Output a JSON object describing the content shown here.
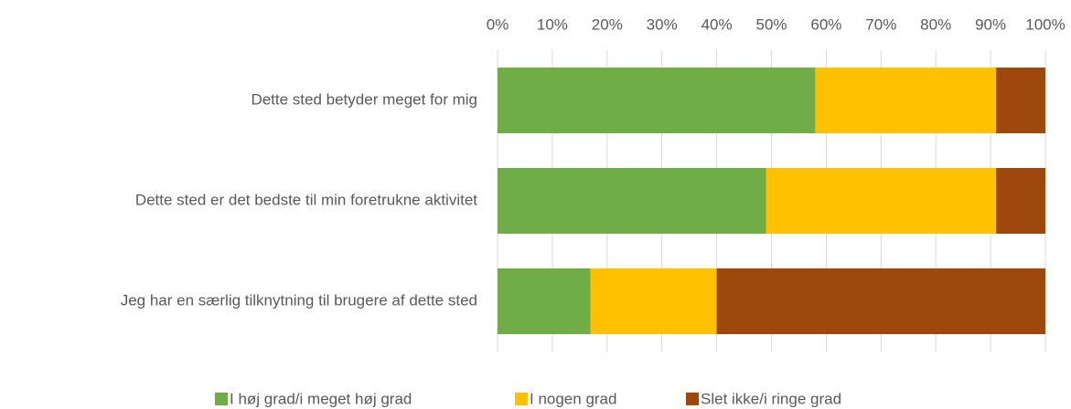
{
  "chart_data": {
    "type": "stacked_bar_horizontal",
    "categories": [
      "Dette sted betyder meget for mig",
      "Dette sted er det bedste til min foretrukne aktivitet",
      "Jeg har en særlig tilknytning til brugere af dette sted"
    ],
    "series": [
      {
        "name": "I høj grad/i meget høj grad",
        "color": "#70ad47",
        "values": [
          58,
          49,
          17
        ]
      },
      {
        "name": "I nogen grad",
        "color": "#ffc000",
        "values": [
          33,
          42,
          23
        ]
      },
      {
        "name": "Slet ikke/i ringe grad",
        "color": "#9e480e",
        "values": [
          9,
          9,
          60
        ]
      }
    ],
    "xlim": [
      0,
      100
    ],
    "xticks": [
      {
        "value": 0,
        "label": "0%"
      },
      {
        "value": 10,
        "label": "10%"
      },
      {
        "value": 20,
        "label": "20%"
      },
      {
        "value": 30,
        "label": "30%"
      },
      {
        "value": 40,
        "label": "40%"
      },
      {
        "value": 50,
        "label": "50%"
      },
      {
        "value": 60,
        "label": "60%"
      },
      {
        "value": 70,
        "label": "70%"
      },
      {
        "value": 80,
        "label": "80%"
      },
      {
        "value": 90,
        "label": "90%"
      },
      {
        "value": 100,
        "label": "100%"
      }
    ],
    "grid": true,
    "legend": "bottom"
  }
}
